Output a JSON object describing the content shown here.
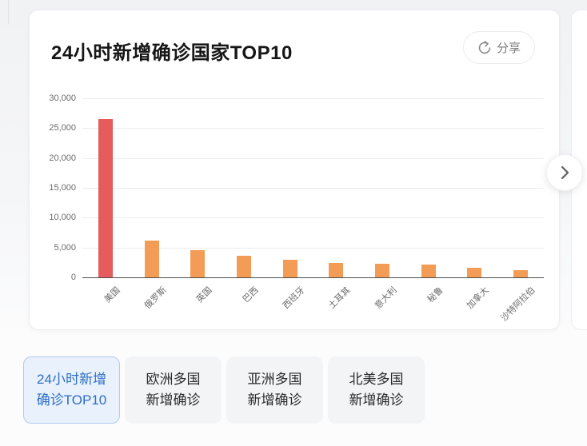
{
  "header": {
    "title": "24小时新增确诊国家TOP10",
    "share": {
      "label": "分享"
    }
  },
  "chart_data": {
    "type": "bar",
    "title": "24小时新增确诊国家TOP10",
    "categories": [
      "美国",
      "俄罗斯",
      "英国",
      "巴西",
      "西班牙",
      "土耳其",
      "意大利",
      "秘鲁",
      "加拿大",
      "沙特阿拉伯"
    ],
    "values": [
      26500,
      6200,
      4500,
      3600,
      2900,
      2400,
      2250,
      2100,
      1650,
      1250
    ],
    "xlabel": "",
    "ylabel": "",
    "ylim": [
      0,
      30000
    ],
    "ytick_interval": 5000,
    "ytick_labels": [
      "0",
      "5,000",
      "10,000",
      "15,000",
      "20,000",
      "25,000",
      "30,000"
    ],
    "grid": true,
    "legend": "none",
    "highlight_index": 0,
    "colors": {
      "highlight_bar": "#e65c5c",
      "bar": "#f39c55",
      "axis_line": "#4d4d4d",
      "grid_line": "#ededed",
      "tick_text": "#6b6b6b"
    }
  },
  "carousel": {
    "next_icon": "chevron-right"
  },
  "tabs": [
    {
      "id": "tab-24h-new-top10",
      "label": "24小时新增\n确诊TOP10",
      "active": true
    },
    {
      "id": "tab-europe-new",
      "label": "欧洲多国\n新增确诊",
      "active": false
    },
    {
      "id": "tab-asia-new",
      "label": "亚洲多国\n新增确诊",
      "active": false
    },
    {
      "id": "tab-north-america-new",
      "label": "北美多国\n新增确诊",
      "active": false
    }
  ],
  "tab_colors": {
    "active_bg": "#e8f1fc",
    "active_border": "#afcbee",
    "active_text": "#2e6ec4",
    "inactive_bg": "#f3f4f6",
    "inactive_text": "#2b2b2b"
  }
}
